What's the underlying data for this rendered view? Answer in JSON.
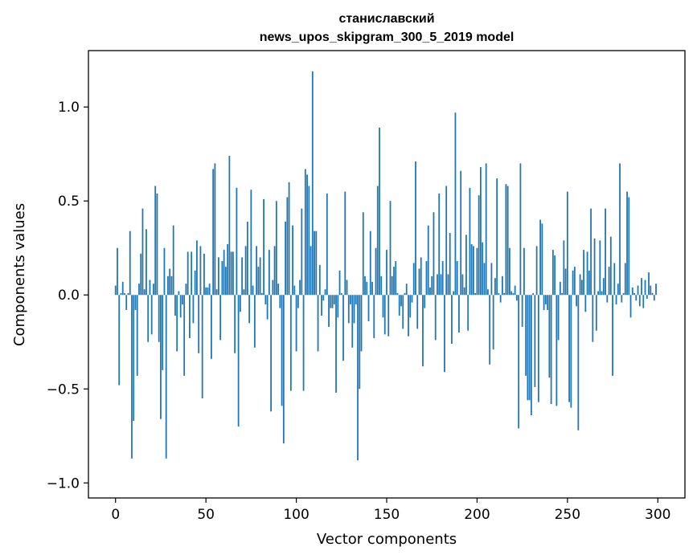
{
  "chart_data": {
    "type": "bar",
    "title": "станиславский",
    "subtitle": "news_upos_skipgram_300_5_2019 model",
    "xlabel": "Vector components",
    "ylabel": "Components values",
    "xlim": [
      -15,
      315
    ],
    "ylim": [
      -1.08,
      1.3
    ],
    "xticks": [
      0,
      50,
      100,
      150,
      200,
      250,
      300
    ],
    "xtick_labels": [
      "0",
      "50",
      "100",
      "150",
      "200",
      "250",
      "300"
    ],
    "yticks": [
      -1.0,
      -0.5,
      0.0,
      0.5,
      1.0
    ],
    "ytick_labels": [
      "−1.0",
      "−0.5",
      "0.0",
      "0.5",
      "1.0"
    ],
    "bar_color": "#1f77b4",
    "values": [
      0.05,
      0.25,
      -0.48,
      0.01,
      0.07,
      0.01,
      -0.08,
      0.01,
      0.34,
      -0.87,
      -0.67,
      -0.08,
      -0.43,
      0.06,
      0.22,
      0.46,
      0.03,
      0.35,
      -0.25,
      0.08,
      -0.21,
      0.06,
      0.58,
      0.54,
      -0.25,
      -0.66,
      -0.4,
      0.25,
      -0.87,
      0.1,
      0.14,
      0.1,
      0.37,
      -0.11,
      -0.3,
      0.02,
      -0.12,
      -0.05,
      -0.43,
      0.06,
      0.23,
      -0.23,
      0.23,
      -0.15,
      0.13,
      0.29,
      -0.31,
      0.26,
      -0.55,
      0.22,
      0.04,
      0.04,
      0.06,
      -0.34,
      0.67,
      0.7,
      0.03,
      0.2,
      -0.24,
      0.18,
      0.24,
      0.15,
      0.27,
      0.74,
      0.23,
      0.23,
      -0.31,
      0.57,
      -0.7,
      -0.09,
      0.2,
      0.03,
      0.26,
      0.39,
      -0.15,
      0.56,
      0.05,
      -0.28,
      0.26,
      0.15,
      0.2,
      0.01,
      0.51,
      -0.05,
      -0.13,
      0.24,
      -0.62,
      0.08,
      0.26,
      0.5,
      0.06,
      -0.07,
      -0.59,
      -0.79,
      0.39,
      0.52,
      0.6,
      -0.51,
      0.37,
      0.05,
      -0.3,
      -0.07,
      0.08,
      0.46,
      -0.51,
      0.67,
      0.64,
      0.58,
      0.26,
      1.19,
      0.34,
      0.34,
      -0.3,
      0.16,
      -0.11,
      -0.03,
      0.03,
      0.54,
      -0.17,
      -0.07,
      -0.07,
      -0.05,
      -0.52,
      -0.12,
      0.13,
      0.01,
      -0.35,
      0.55,
      0.08,
      -0.15,
      -0.05,
      -0.28,
      -0.15,
      -0.05,
      -0.88,
      -0.5,
      -0.3,
      0.44,
      0.1,
      0.07,
      -0.14,
      0.34,
      0.07,
      -0.23,
      0.25,
      0.58,
      0.89,
      0.1,
      -0.12,
      -0.21,
      0.24,
      -0.22,
      0.5,
      0.1,
      0.15,
      0.18,
      0.01,
      -0.11,
      -0.06,
      -0.18,
      0.01,
      0.06,
      -0.22,
      -0.12,
      -0.04,
      0.17,
      0.71,
      -0.18,
      0.14,
      0.2,
      -0.38,
      -0.07,
      0.18,
      0.37,
      0.04,
      0.1,
      0.44,
      -0.24,
      0.11,
      0.54,
      0.11,
      0.18,
      -0.41,
      0.58,
      0.11,
      0.33,
      -0.26,
      0.02,
      0.97,
      0.18,
      -0.2,
      0.66,
      0.11,
      0.04,
      0.32,
      -0.19,
      0.57,
      0.27,
      0.26,
      0.01,
      0.25,
      0.53,
      0.68,
      0.28,
      0.17,
      0.7,
      0.03,
      -0.37,
      0.17,
      -0.29,
      0.09,
      0.62,
      0.01,
      -0.04,
      0.1,
      0.01,
      0.59,
      0.58,
      0.25,
      0.02,
      0.01,
      0.05,
      -0.03,
      -0.71,
      0.7,
      -0.17,
      0.25,
      -0.43,
      -0.56,
      -0.56,
      -0.64,
      0.01,
      -0.49,
      0.26,
      -0.57,
      0.4,
      0.38,
      -0.08,
      -0.05,
      -0.08,
      -0.44,
      -0.58,
      0.24,
      0.21,
      -0.59,
      -0.24,
      0.07,
      0.01,
      0.29,
      0.14,
      0.55,
      -0.57,
      -0.6,
      0.13,
      0.15,
      -0.06,
      -0.72,
      0.11,
      0.08,
      0.24,
      -0.09,
      0.23,
      0.13,
      0.46,
      -0.25,
      0.3,
      -0.19,
      0.02,
      0.29,
      0.02,
      0.09,
      0.46,
      -0.04,
      0.15,
      0.31,
      -0.43,
      0.17,
      -0.05,
      0.06,
      0.7,
      -0.04,
      0.01,
      0.17,
      0.55,
      0.52,
      -0.12,
      0.04,
      0.01,
      -0.03,
      0.05,
      -0.06,
      0.09,
      -0.07,
      0.08,
      -0.02,
      0.12,
      0.05,
      0.01,
      -0.03,
      0.06
    ]
  }
}
